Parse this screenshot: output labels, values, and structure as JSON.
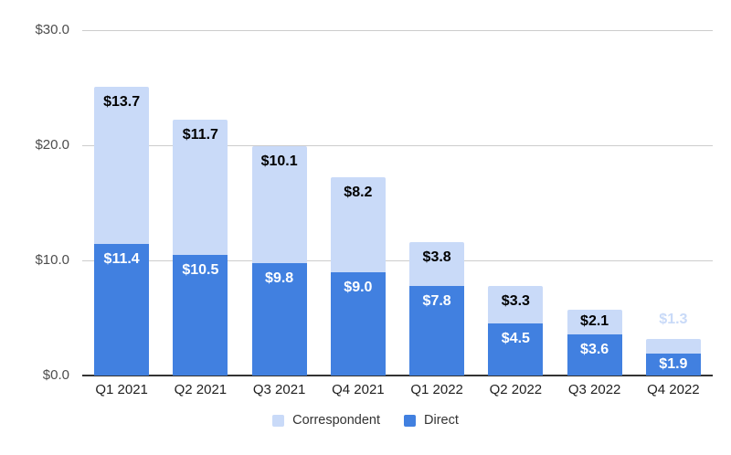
{
  "chart_data": {
    "type": "bar",
    "stacked": true,
    "title": "",
    "xlabel": "",
    "ylabel": "",
    "categories": [
      "Q1 2021",
      "Q2 2021",
      "Q3 2021",
      "Q4 2021",
      "Q1 2022",
      "Q2 2022",
      "Q3 2022",
      "Q4 2022"
    ],
    "series": [
      {
        "name": "Correspondent",
        "color": "#c9daf8",
        "values": [
          13.7,
          11.7,
          10.1,
          8.2,
          3.8,
          3.3,
          2.1,
          1.3
        ],
        "data_labels": [
          "$13.7",
          "$11.7",
          "$10.1",
          "$8.2",
          "$3.8",
          "$3.3",
          "$2.1",
          "$1.3"
        ],
        "label_color": "#000000"
      },
      {
        "name": "Direct",
        "color": "#4180e0",
        "values": [
          11.4,
          10.5,
          9.8,
          9.0,
          7.8,
          4.5,
          3.6,
          1.9
        ],
        "data_labels": [
          "$11.4",
          "$10.5",
          "$9.8",
          "$9.0",
          "$7.8",
          "$4.5",
          "$3.6",
          "$1.9"
        ],
        "label_color": "#ffffff"
      }
    ],
    "stack_order_bottom_to_top": [
      "Direct",
      "Correspondent"
    ],
    "yticks": [
      {
        "value": 0,
        "label": "$0.0"
      },
      {
        "value": 10,
        "label": "$10.0"
      },
      {
        "value": 20,
        "label": "$20.0"
      },
      {
        "value": 30,
        "label": "$30.0"
      }
    ],
    "ylim": [
      0,
      30
    ],
    "value_prefix": "$",
    "grid": true,
    "legend_position": "bottom",
    "colors": {
      "background": "#ffffff",
      "gridline": "#cccccc",
      "axis_baseline": "#333333",
      "ytick_text": "#4d4d4d",
      "xtick_text": "#1f1f1f",
      "legend_text": "#333333"
    }
  }
}
